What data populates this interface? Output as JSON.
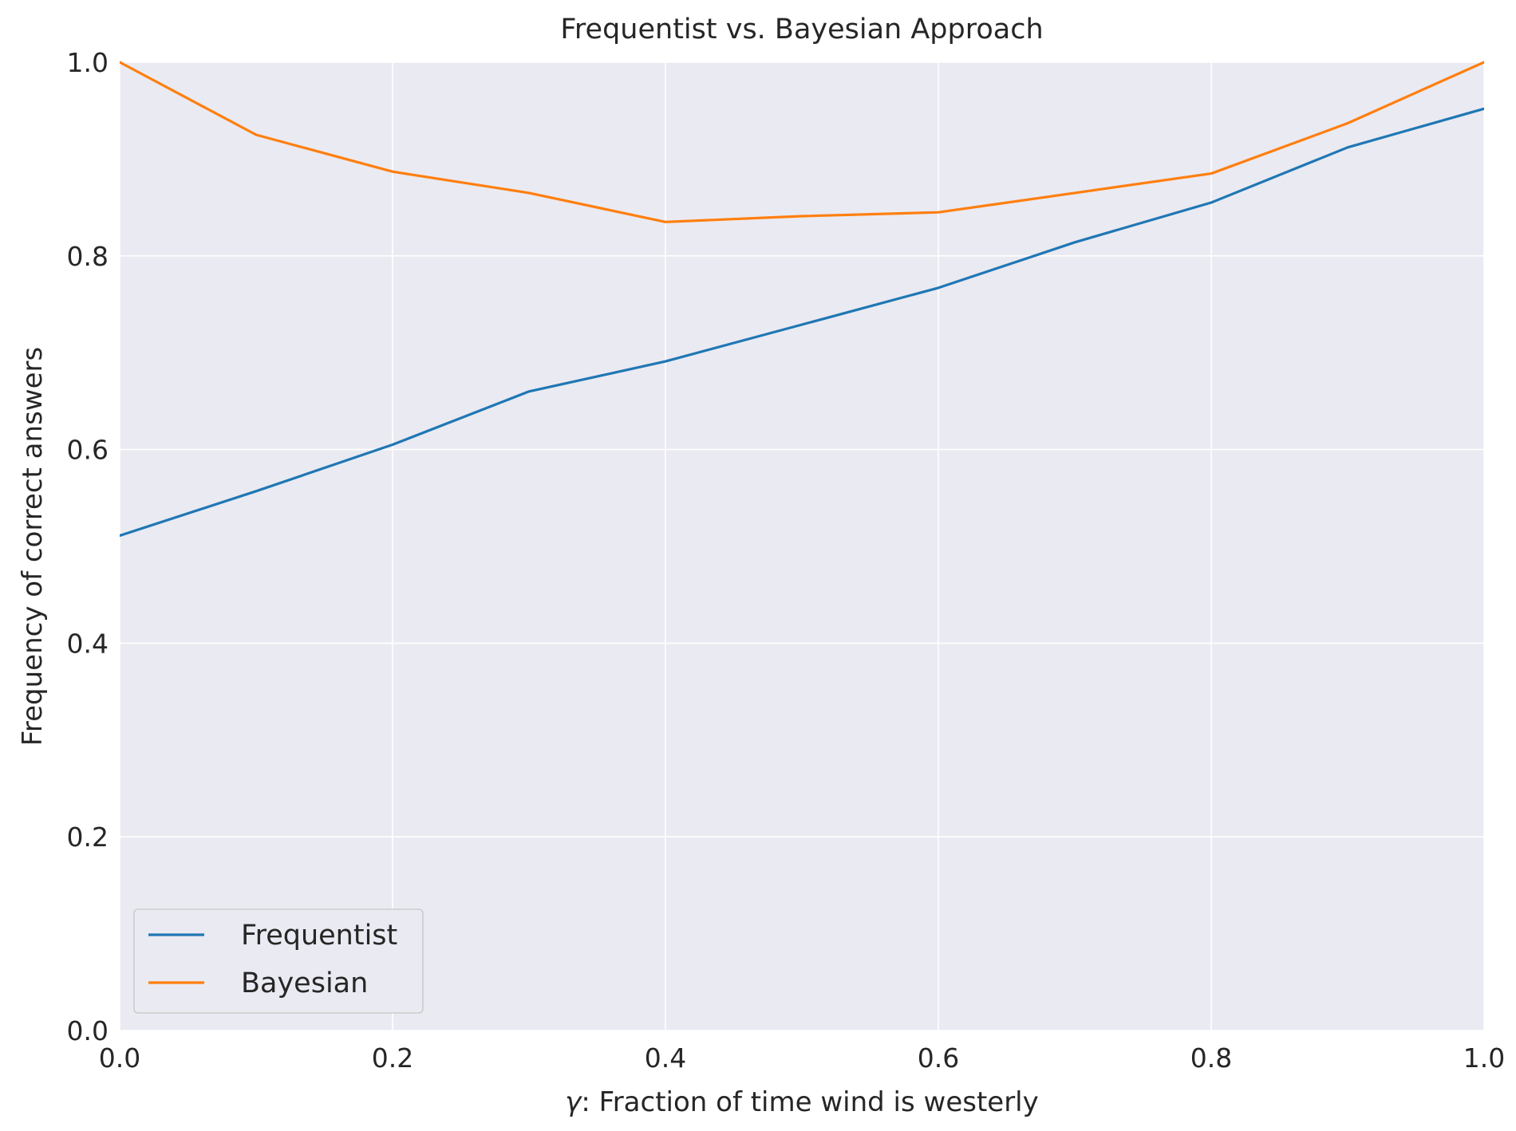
{
  "chart_data": {
    "type": "line",
    "title": "Frequentist vs. Bayesian Approach",
    "xlabel_symbol": "γ",
    "xlabel_rest": ": Fraction of time wind is westerly",
    "ylabel": "Frequency of correct answers",
    "xlim": [
      0.0,
      1.0
    ],
    "ylim": [
      0.0,
      1.0
    ],
    "xticks": [
      0.0,
      0.2,
      0.4,
      0.6,
      0.8,
      1.0
    ],
    "yticks": [
      0.0,
      0.2,
      0.4,
      0.6,
      0.8,
      1.0
    ],
    "xtick_labels": [
      "0.0",
      "0.2",
      "0.4",
      "0.6",
      "0.8",
      "1.0"
    ],
    "ytick_labels": [
      "0.0",
      "0.2",
      "0.4",
      "0.6",
      "0.8",
      "1.0"
    ],
    "grid": true,
    "legend_position": "lower-left",
    "x": [
      0.0,
      0.1,
      0.2,
      0.3,
      0.4,
      0.5,
      0.6,
      0.7,
      0.8,
      0.9,
      1.0
    ],
    "series": [
      {
        "name": "Frequentist",
        "color": "#1f77b4",
        "values": [
          0.511,
          0.557,
          0.605,
          0.66,
          0.691,
          0.729,
          0.767,
          0.814,
          0.855,
          0.912,
          0.952
        ]
      },
      {
        "name": "Bayesian",
        "color": "#ff7f0e",
        "values": [
          1.0,
          0.925,
          0.887,
          0.865,
          0.835,
          0.841,
          0.845,
          0.865,
          0.885,
          0.937,
          1.0
        ]
      }
    ]
  }
}
